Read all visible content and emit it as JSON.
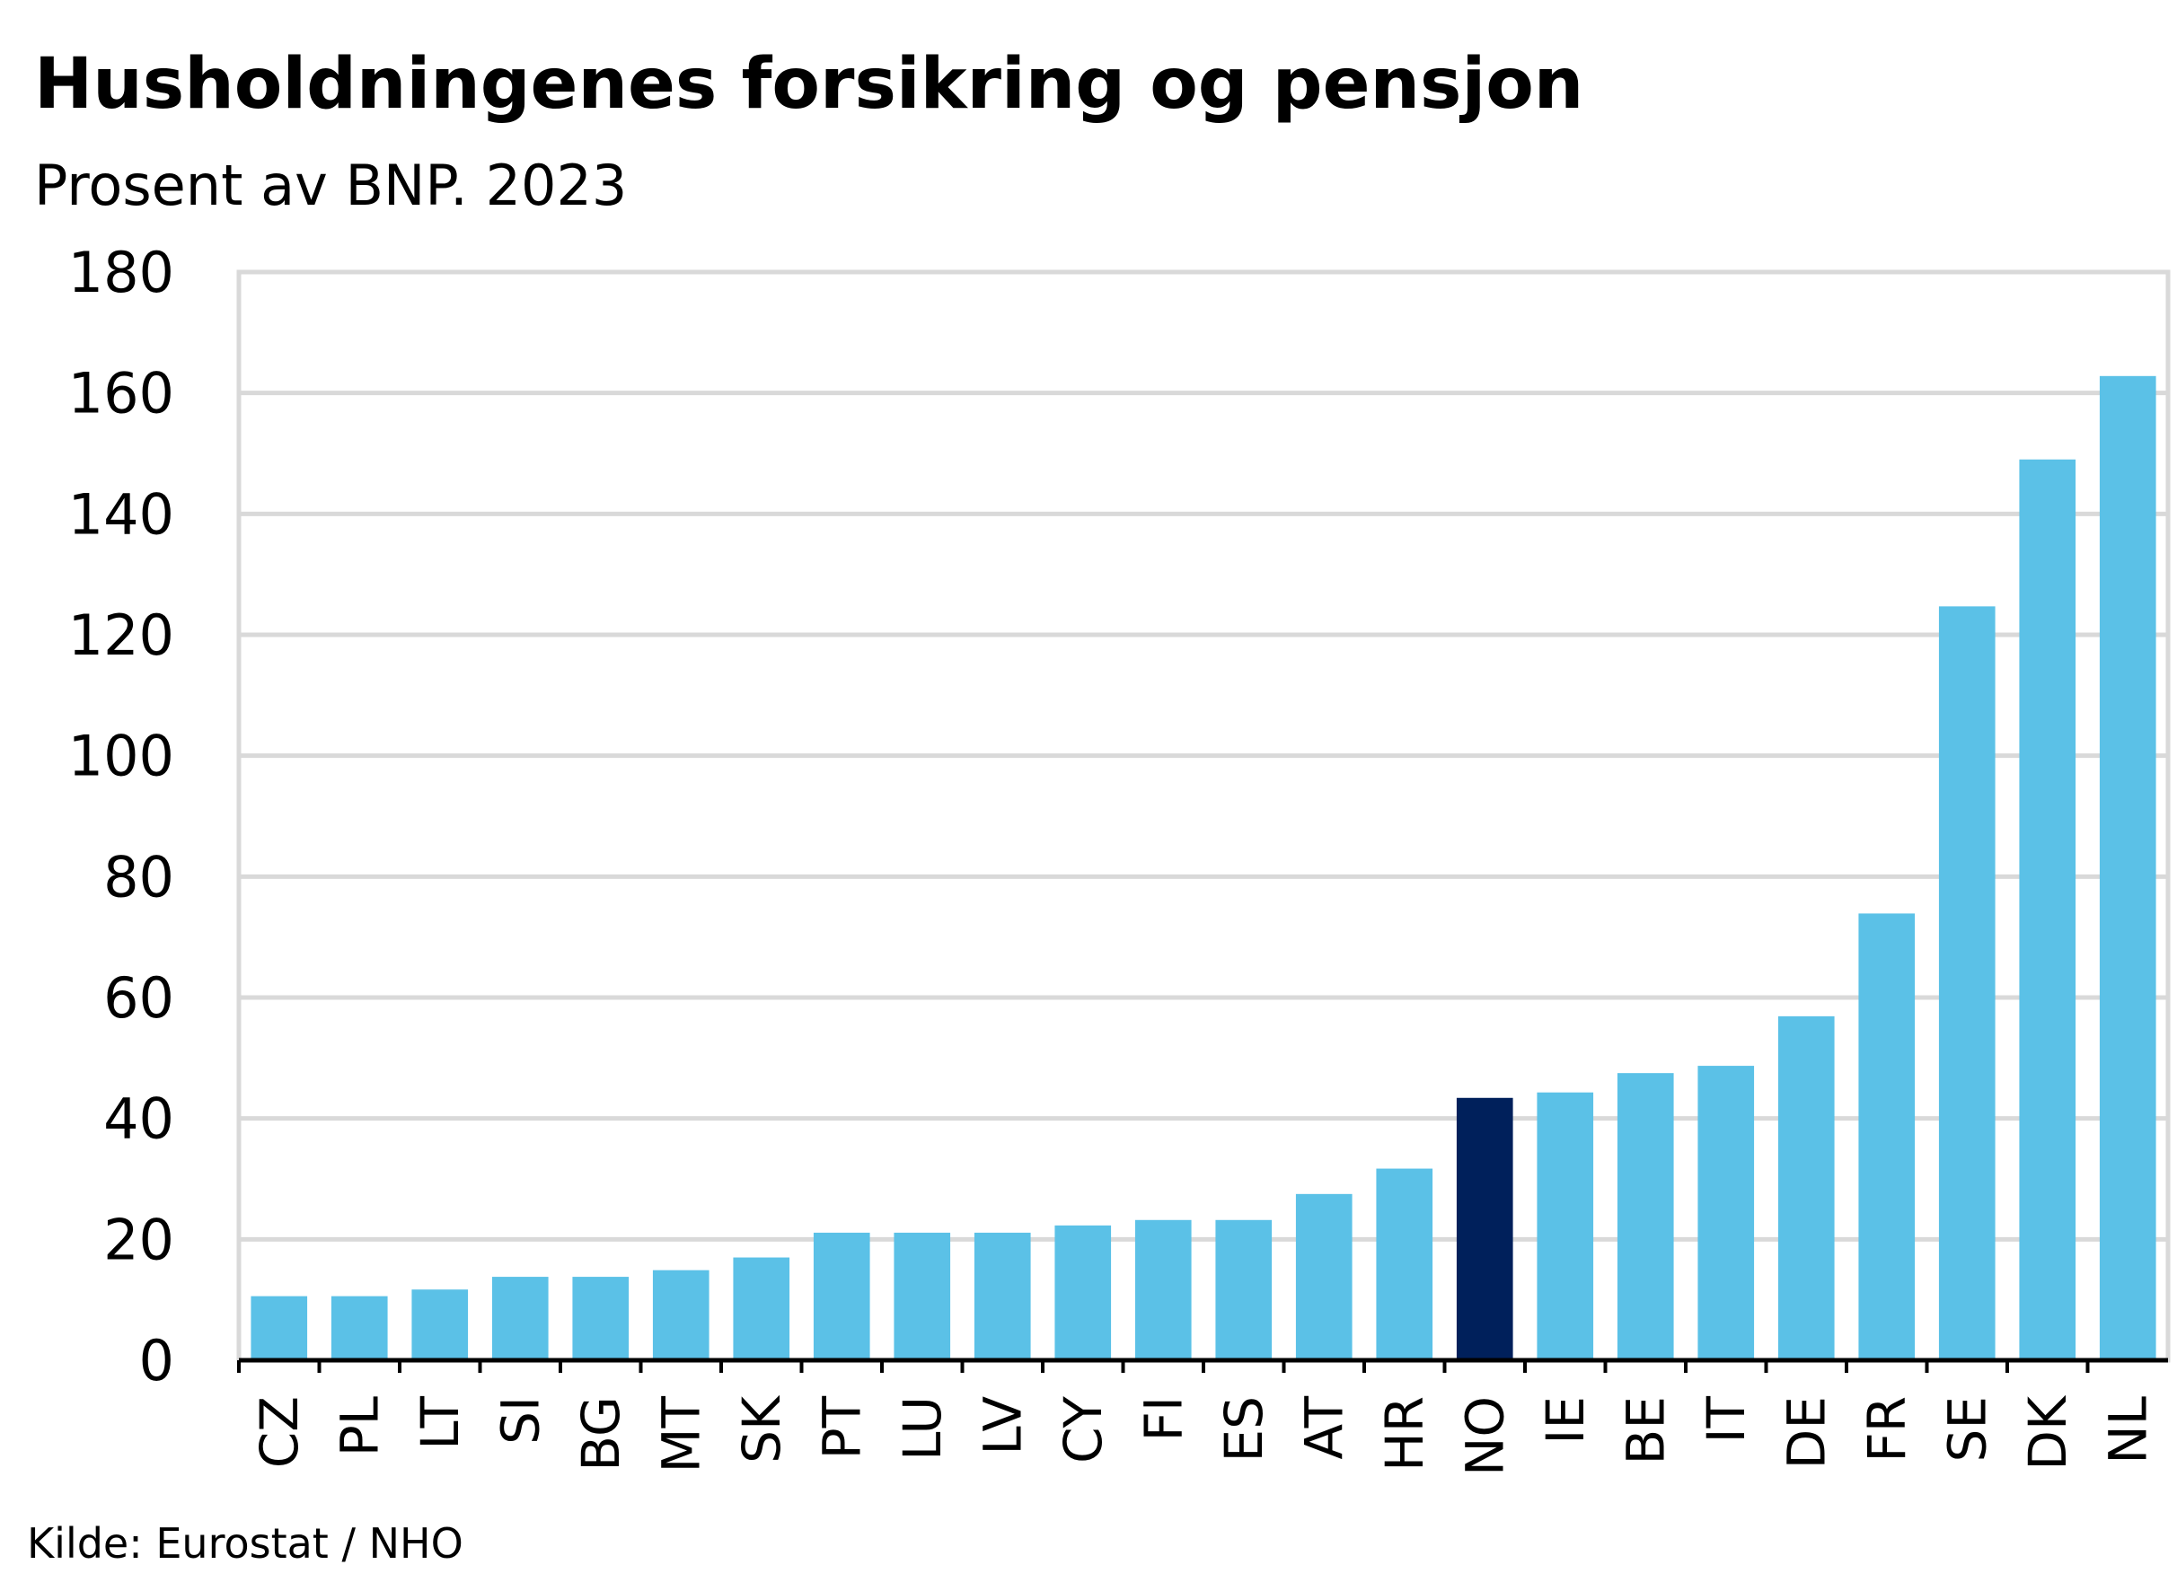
{
  "chart_data": {
    "type": "bar",
    "title": "Husholdningenes forsikring og pensjon",
    "subtitle": "Prosent av BNP. 2023",
    "source": "Kilde: Eurostat / NHO",
    "xlabel": "",
    "ylabel": "",
    "ylim": [
      0,
      180
    ],
    "yticks": [
      0,
      20,
      40,
      60,
      80,
      100,
      120,
      140,
      160,
      180
    ],
    "grid": true,
    "categories": [
      "CZ",
      "PL",
      "LT",
      "SI",
      "BG",
      "MT",
      "SK",
      "PT",
      "LU",
      "LV",
      "CY",
      "FI",
      "ES",
      "AT",
      "HR",
      "NO",
      "IE",
      "BE",
      "IT",
      "DE",
      "FR",
      "SE",
      "DK",
      "NL"
    ],
    "values": [
      10.6,
      10.6,
      11.7,
      13.8,
      13.8,
      14.9,
      17.0,
      21.1,
      21.1,
      21.1,
      22.3,
      23.2,
      23.2,
      27.5,
      31.7,
      43.4,
      44.3,
      47.5,
      48.7,
      56.9,
      73.9,
      124.7,
      149.0,
      162.8
    ],
    "highlight": "NO",
    "colors": {
      "bar": "#5bc1e7",
      "highlight": "#00205b",
      "grid": "#d9d9d9",
      "axis": "#000000"
    }
  }
}
